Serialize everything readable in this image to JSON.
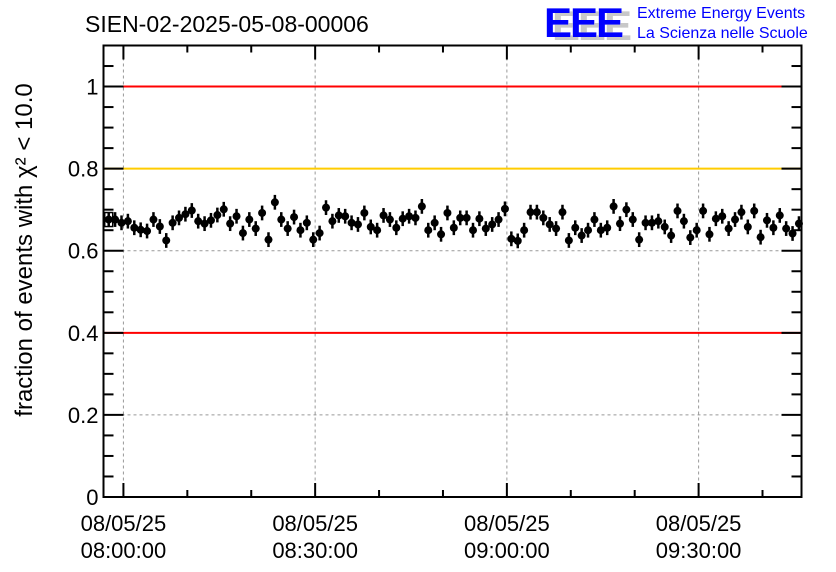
{
  "chart_data": {
    "type": "scatter",
    "title": "SIEN-02-2025-05-08-00006",
    "xlabel": "",
    "ylabel": "fraction of events with χ² < 10.0",
    "ylabel_parts": {
      "pre": "fraction of events with ",
      "sym": "X",
      "sup": "2",
      "post": " < 10.0"
    },
    "ylim": [
      0,
      1.1
    ],
    "xlim": [
      "07:56:53",
      "09:46:06"
    ],
    "yticks": [
      0,
      0.2,
      0.4,
      0.6,
      0.8,
      1
    ],
    "ytick_labels": [
      "0",
      "0.2",
      "0.4",
      "0.6",
      "0.8",
      "1"
    ],
    "xticks": [
      "08:00:00",
      "08:30:00",
      "09:00:00",
      "09:30:00"
    ],
    "xtick_labels": [
      {
        "date": "08/05/25",
        "time": "08:00:00"
      },
      {
        "date": "08/05/25",
        "time": "08:30:00"
      },
      {
        "date": "08/05/25",
        "time": "09:00:00"
      },
      {
        "date": "08/05/25",
        "time": "09:30:00"
      }
    ],
    "grid": true,
    "reference_lines": [
      {
        "y": 1.0,
        "color": "#ff0000"
      },
      {
        "y": 0.8,
        "color": "#ffcc00"
      },
      {
        "y": 0.4,
        "color": "#ff0000"
      }
    ],
    "series": [
      {
        "name": "fraction",
        "start_time": "07:57:42",
        "step_seconds": 60,
        "error": 0.018,
        "color": "#000000",
        "values": [
          0.676,
          0.676,
          0.668,
          0.672,
          0.656,
          0.651,
          0.648,
          0.676,
          0.659,
          0.625,
          0.668,
          0.68,
          0.689,
          0.698,
          0.672,
          0.666,
          0.674,
          0.687,
          0.701,
          0.666,
          0.684,
          0.643,
          0.676,
          0.654,
          0.692,
          0.627,
          0.718,
          0.676,
          0.654,
          0.682,
          0.65,
          0.668,
          0.627,
          0.643,
          0.705,
          0.672,
          0.686,
          0.684,
          0.668,
          0.664,
          0.692,
          0.658,
          0.65,
          0.686,
          0.676,
          0.656,
          0.678,
          0.684,
          0.68,
          0.708,
          0.65,
          0.668,
          0.64,
          0.692,
          0.656,
          0.68,
          0.68,
          0.65,
          0.678,
          0.654,
          0.664,
          0.676,
          0.702,
          0.629,
          0.624,
          0.65,
          0.694,
          0.694,
          0.68,
          0.664,
          0.654,
          0.694,
          0.625,
          0.656,
          0.637,
          0.65,
          0.676,
          0.65,
          0.656,
          0.708,
          0.666,
          0.7,
          0.676,
          0.627,
          0.668,
          0.668,
          0.672,
          0.658,
          0.637,
          0.697,
          0.672,
          0.632,
          0.65,
          0.697,
          0.64,
          0.678,
          0.684,
          0.654,
          0.676,
          0.694,
          0.658,
          0.697,
          0.633,
          0.674,
          0.656,
          0.686,
          0.654,
          0.642,
          0.666
        ]
      }
    ]
  },
  "logo": {
    "mark": "EEE",
    "line1": "Extreme Energy Events",
    "line2": "La Scienza nelle Scuole",
    "color": "#0000ff"
  }
}
